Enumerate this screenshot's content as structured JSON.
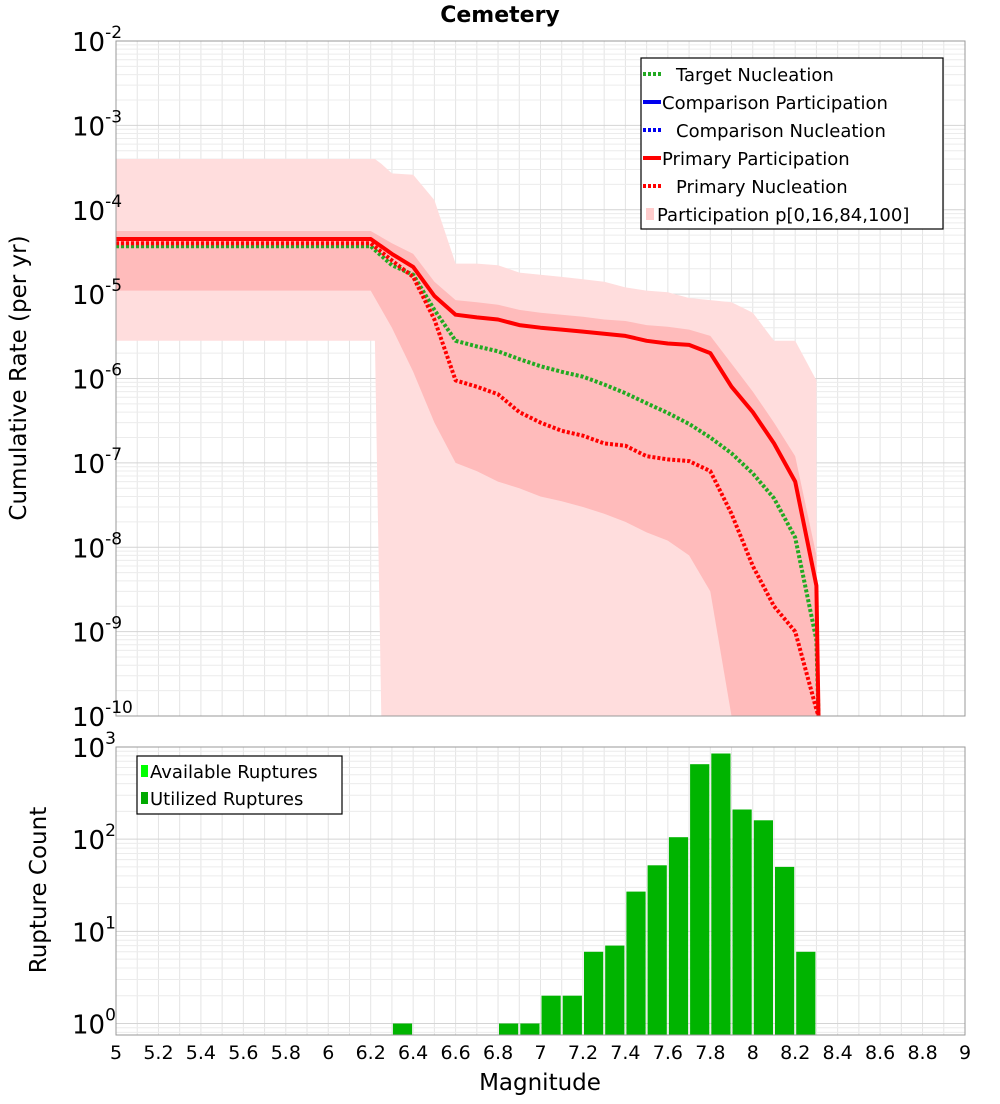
{
  "chart_data": [
    {
      "type": "line",
      "title": "Cemetery",
      "xlabel": "",
      "ylabel": "Cumulative Rate (per yr)",
      "xlim": [
        5,
        9
      ],
      "ylim": [
        1e-10,
        0.01
      ],
      "yscale": "log",
      "ytick_base": "10",
      "ytick_exponents": [
        "-2",
        "-3",
        "-4",
        "-5",
        "-6",
        "-7",
        "-8",
        "-9",
        "-10"
      ],
      "legend": {
        "position": "top-right",
        "entries": [
          {
            "label": "Target Nucleation",
            "color": "#22aa22",
            "style": "dotted"
          },
          {
            "label": "Comparison Participation",
            "color": "#0000ee",
            "style": "solid"
          },
          {
            "label": "Comparison Nucleation",
            "color": "#0000ee",
            "style": "dotted"
          },
          {
            "label": "Primary Participation",
            "color": "#ff0000",
            "style": "solid"
          },
          {
            "label": "Primary Nucleation",
            "color": "#ff0000",
            "style": "dotted"
          },
          {
            "label": "Participation p[0,16,84,100]",
            "color": "#ffcccc",
            "style": "fill"
          }
        ]
      },
      "x": [
        5.0,
        6.2,
        6.3,
        6.4,
        6.5,
        6.6,
        6.7,
        6.8,
        6.9,
        7.0,
        7.1,
        7.2,
        7.3,
        7.4,
        7.5,
        7.6,
        7.7,
        7.8,
        7.9,
        8.0,
        8.1,
        8.2,
        8.3,
        8.31
      ],
      "series": [
        {
          "name": "Primary Participation",
          "color": "#ff0000",
          "style": "solid",
          "values": [
            4.5e-05,
            4.5e-05,
            3e-05,
            2.1e-05,
            9.5e-06,
            5.7e-06,
            5.3e-06,
            5e-06,
            4.3e-06,
            4e-06,
            3.8e-06,
            3.6e-06,
            3.4e-06,
            3.2e-06,
            2.8e-06,
            2.6e-06,
            2.5e-06,
            2e-06,
            8e-07,
            4e-07,
            1.7e-07,
            6e-08,
            3.5e-09,
            1e-10
          ]
        },
        {
          "name": "Target Nucleation",
          "color": "#22aa22",
          "style": "dotted",
          "values": [
            3.7e-05,
            3.7e-05,
            2.2e-05,
            1.7e-05,
            6.5e-06,
            2.8e-06,
            2.4e-06,
            2.1e-06,
            1.7e-06,
            1.4e-06,
            1.2e-06,
            1.05e-06,
            8.5e-07,
            6.7e-07,
            5.1e-07,
            3.9e-07,
            2.9e-07,
            2e-07,
            1.3e-07,
            7.5e-08,
            3.8e-08,
            1.3e-08,
            8e-10,
            1e-10
          ]
        },
        {
          "name": "Primary Nucleation",
          "color": "#ff0000",
          "style": "dotted",
          "values": [
            4e-05,
            4e-05,
            2.5e-05,
            1.6e-05,
            5e-06,
            9.5e-07,
            8e-07,
            6.5e-07,
            4e-07,
            3e-07,
            2.4e-07,
            2.1e-07,
            1.7e-07,
            1.6e-07,
            1.2e-07,
            1.1e-07,
            1.05e-07,
            8e-08,
            2.5e-08,
            6e-09,
            2e-09,
            1e-09,
            1.2e-10,
            1e-10
          ]
        }
      ],
      "bands": [
        {
          "name": "Participation p[0,100]",
          "color": "#ffdddd",
          "x": [
            5.0,
            6.2,
            6.22,
            6.25,
            6.3,
            6.4,
            6.5,
            6.6,
            6.7,
            6.8,
            6.9,
            7.0,
            7.1,
            7.2,
            7.3,
            7.4,
            7.5,
            7.6,
            7.7,
            7.8,
            7.9,
            8.0,
            8.1,
            8.2,
            8.3
          ],
          "lower": [
            2.8e-06,
            2.8e-06,
            2.8e-06,
            1e-10,
            1e-10,
            1e-10,
            1e-10,
            1e-10,
            1e-10,
            1e-10,
            1e-10,
            1e-10,
            1e-10,
            1e-10,
            1e-10,
            1e-10,
            1e-10,
            1e-10,
            1e-10,
            1e-10,
            1e-10,
            1e-10,
            1e-10,
            1e-10,
            1e-10
          ],
          "upper": [
            0.0004,
            0.0004,
            0.0004,
            0.00035,
            0.00027,
            0.00026,
            0.00013,
            2.3e-05,
            2.3e-05,
            2.2e-05,
            1.8e-05,
            1.7e-05,
            1.6e-05,
            1.5e-05,
            1.4e-05,
            1.2e-05,
            1.1e-05,
            1.05e-05,
            9e-06,
            8.5e-06,
            8e-06,
            6e-06,
            2.8e-06,
            2.8e-06,
            9.5e-07
          ]
        },
        {
          "name": "Participation p[16,84]",
          "color": "#ffbbbb",
          "x": [
            5.0,
            6.2,
            6.3,
            6.4,
            6.5,
            6.6,
            6.7,
            6.8,
            6.9,
            7.0,
            7.1,
            7.2,
            7.3,
            7.4,
            7.5,
            7.6,
            7.7,
            7.8,
            7.9,
            8.0,
            8.1,
            8.2,
            8.3
          ],
          "lower": [
            1.1e-05,
            1.1e-05,
            4e-06,
            1.2e-06,
            3e-07,
            1e-07,
            8e-08,
            6e-08,
            5e-08,
            4e-08,
            3.5e-08,
            3e-08,
            2.5e-08,
            2e-08,
            1.5e-08,
            1.2e-08,
            8e-09,
            3e-09,
            1e-10,
            1e-10,
            1e-10,
            1e-10,
            1e-10
          ],
          "upper": [
            5.6e-05,
            5.6e-05,
            4e-05,
            3e-05,
            1.4e-05,
            8.5e-06,
            8e-06,
            7.5e-06,
            6.5e-06,
            6e-06,
            5.7e-06,
            5.4e-06,
            5e-06,
            4.8e-06,
            4.3e-06,
            4.1e-06,
            3.8e-06,
            3.2e-06,
            1.5e-06,
            7e-07,
            3e-07,
            1.2e-07,
            8e-09
          ]
        }
      ]
    },
    {
      "type": "bar",
      "xlabel": "Magnitude",
      "ylabel": "Rupture Count",
      "xlim": [
        5,
        9
      ],
      "ylim": [
        0.75,
        1000
      ],
      "yscale": "log",
      "ytick_base": "10",
      "ytick_exponents": [
        "3",
        "2",
        "1",
        "0"
      ],
      "xticks": [
        "5",
        "5.2",
        "5.4",
        "5.6",
        "5.8",
        "6",
        "6.2",
        "6.4",
        "6.6",
        "6.8",
        "7",
        "7.2",
        "7.4",
        "7.6",
        "7.8",
        "8",
        "8.2",
        "8.4",
        "8.6",
        "8.8",
        "9"
      ],
      "bin_width": 0.1,
      "legend": {
        "position": "top-left",
        "entries": [
          {
            "label": "Available Ruptures",
            "color": "#00ff00"
          },
          {
            "label": "Utilized Ruptures",
            "color": "#00aa00"
          }
        ]
      },
      "categories": [
        6.35,
        6.85,
        6.95,
        7.05,
        7.15,
        7.25,
        7.35,
        7.45,
        7.55,
        7.65,
        7.75,
        7.85,
        7.95,
        8.05,
        8.15,
        8.25
      ],
      "series": [
        {
          "name": "Utilized Ruptures",
          "color": "#00b400",
          "values": [
            1,
            1,
            1,
            2,
            2,
            6,
            7,
            27,
            52,
            105,
            650,
            850,
            210,
            160,
            50,
            6
          ]
        }
      ]
    }
  ]
}
